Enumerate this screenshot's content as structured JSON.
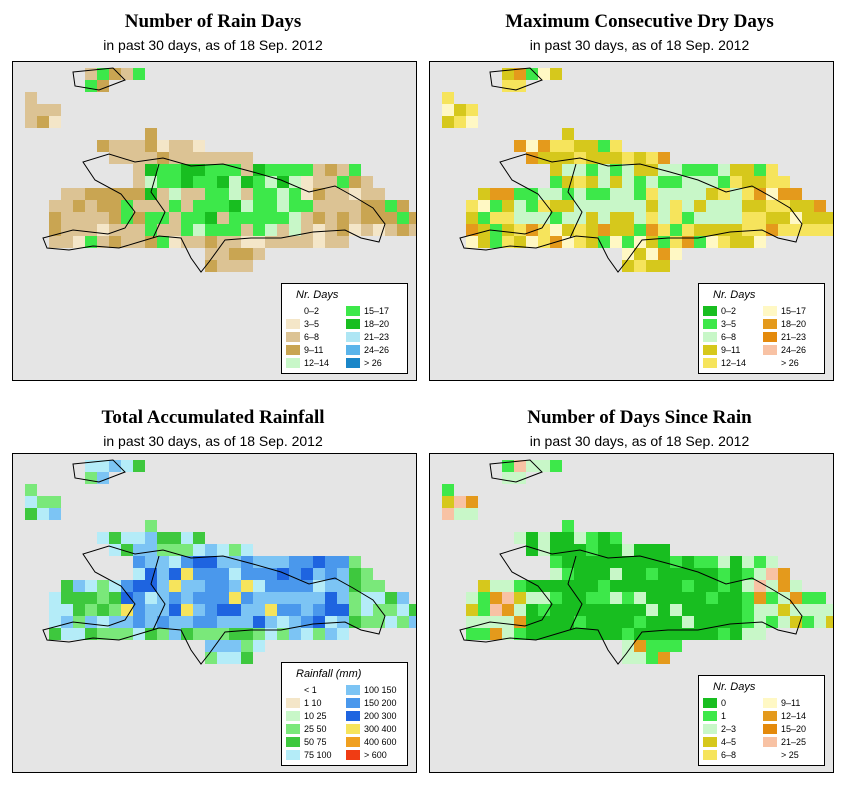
{
  "panels": [
    {
      "id": "rain-days",
      "title": "Number of Rain Days",
      "subtitle": "in past 30 days, as of  18 Sep. 2012",
      "legend": {
        "title": "Nr. Days",
        "left": [
          {
            "label": "0–2",
            "color": "#ffffff"
          },
          {
            "label": "3–5",
            "color": "#f4e6c8"
          },
          {
            "label": "6–8",
            "color": "#dcc394"
          },
          {
            "label": "9–11",
            "color": "#c9a552"
          },
          {
            "label": "12–14",
            "color": "#c8f7c8"
          }
        ],
        "right": [
          {
            "label": "15–17",
            "color": "#3de84a"
          },
          {
            "label": "18–20",
            "color": "#18be20"
          },
          {
            "label": "21–23",
            "color": "#aee6f4"
          },
          {
            "label": "24–26",
            "color": "#5ab4ea"
          },
          {
            "label": "> 26",
            "color": "#1a86c8"
          }
        ]
      }
    },
    {
      "id": "dry-days",
      "title": "Maximum Consecutive Dry Days",
      "subtitle": "in past 30 days, as of  18 Sep. 2012",
      "legend": {
        "title": "Nr. Days",
        "left": [
          {
            "label": "0–2",
            "color": "#18be20"
          },
          {
            "label": "3–5",
            "color": "#3de84a"
          },
          {
            "label": "6–8",
            "color": "#c8f7c8"
          },
          {
            "label": "9–11",
            "color": "#d6c81c"
          },
          {
            "label": "12–14",
            "color": "#f6e45c"
          }
        ],
        "right": [
          {
            "label": "15–17",
            "color": "#fff8c4"
          },
          {
            "label": "18–20",
            "color": "#e49a1c"
          },
          {
            "label": "21–23",
            "color": "#e48a0c"
          },
          {
            "label": "24–26",
            "color": "#f8c2a4"
          },
          {
            "label": "> 26",
            "color": "#ffffff"
          }
        ]
      }
    },
    {
      "id": "total-rain",
      "title": "Total Accumulated Rainfall",
      "subtitle": "in past 30 days, as of  18 Sep. 2012",
      "legend": {
        "title": "Rainfall (mm)",
        "left": [
          {
            "label": "< 1",
            "color": "#ffffff"
          },
          {
            "label": "1    10",
            "color": "#f4e6c8"
          },
          {
            "label": "10    25",
            "color": "#c8f7c8"
          },
          {
            "label": "25    50",
            "color": "#7ae87a"
          },
          {
            "label": "50    75",
            "color": "#3ec83e"
          },
          {
            "label": "75    100",
            "color": "#b4ecf8"
          }
        ],
        "right": [
          {
            "label": "100    150",
            "color": "#7cc4f4"
          },
          {
            "label": "150    200",
            "color": "#4a98ec"
          },
          {
            "label": "200    300",
            "color": "#1e64e0"
          },
          {
            "label": "300    400",
            "color": "#f6e45c"
          },
          {
            "label": "400    600",
            "color": "#f0a020"
          },
          {
            "label": "> 600",
            "color": "#f03c14"
          }
        ]
      }
    },
    {
      "id": "days-since",
      "title": "Number of Days Since Rain",
      "subtitle": "in past 30 days, as of  18 Sep. 2012",
      "legend": {
        "title": "Nr. Days",
        "left": [
          {
            "label": "0",
            "color": "#18be20"
          },
          {
            "label": "1",
            "color": "#3de84a"
          },
          {
            "label": "2–3",
            "color": "#c8f7c8"
          },
          {
            "label": "4–5",
            "color": "#d6c81c"
          },
          {
            "label": "6–8",
            "color": "#f6e45c"
          }
        ],
        "right": [
          {
            "label": "9–11",
            "color": "#fff8c4"
          },
          {
            "label": "12–14",
            "color": "#e49a1c"
          },
          {
            "label": "15–20",
            "color": "#e48a0c"
          },
          {
            "label": "21–25",
            "color": "#f8c2a4"
          },
          {
            "label": "> 25",
            "color": "#ffffff"
          }
        ]
      }
    }
  ]
}
